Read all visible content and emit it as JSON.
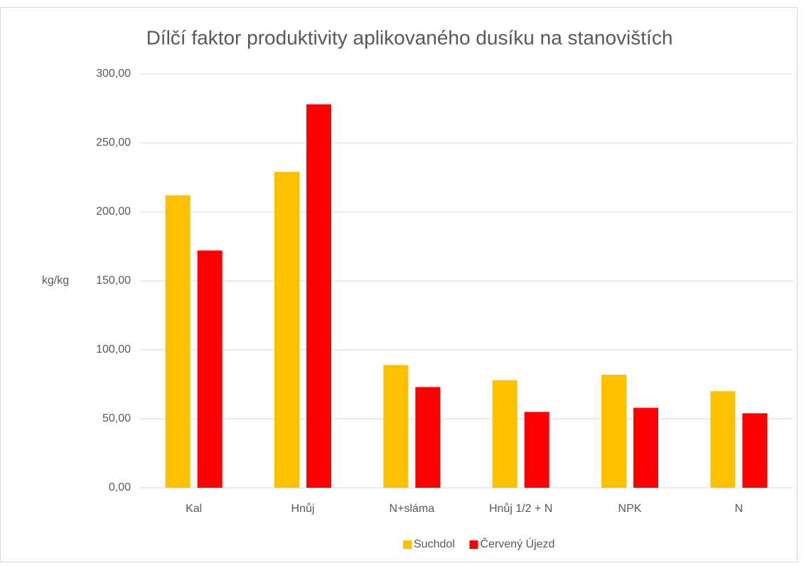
{
  "chart_data": {
    "type": "bar",
    "title": "Dílčí faktor produktivity aplikovaného dusíku na stanovištích",
    "ylabel": "kg/kg",
    "categories": [
      "Kal",
      "Hnůj",
      "N+sláma",
      "Hnůj 1/2 + N",
      "NPK",
      "N"
    ],
    "series": [
      {
        "name": "Suchdol",
        "color": "#ffc000",
        "values": [
          212,
          229,
          89,
          78,
          82,
          70
        ]
      },
      {
        "name": "Červený Újezd",
        "color": "#ff0000",
        "values": [
          172,
          278,
          73,
          55,
          58,
          54
        ]
      }
    ],
    "ylim": [
      0,
      300
    ],
    "yticks": [
      {
        "value": 0,
        "label": "0,00"
      },
      {
        "value": 50,
        "label": "50,00"
      },
      {
        "value": 100,
        "label": "100,00"
      },
      {
        "value": 150,
        "label": "150,00"
      },
      {
        "value": 200,
        "label": "200,00"
      },
      {
        "value": 250,
        "label": "250,00"
      },
      {
        "value": 300,
        "label": "300,00"
      }
    ],
    "grid": true,
    "legend": "bottom"
  }
}
